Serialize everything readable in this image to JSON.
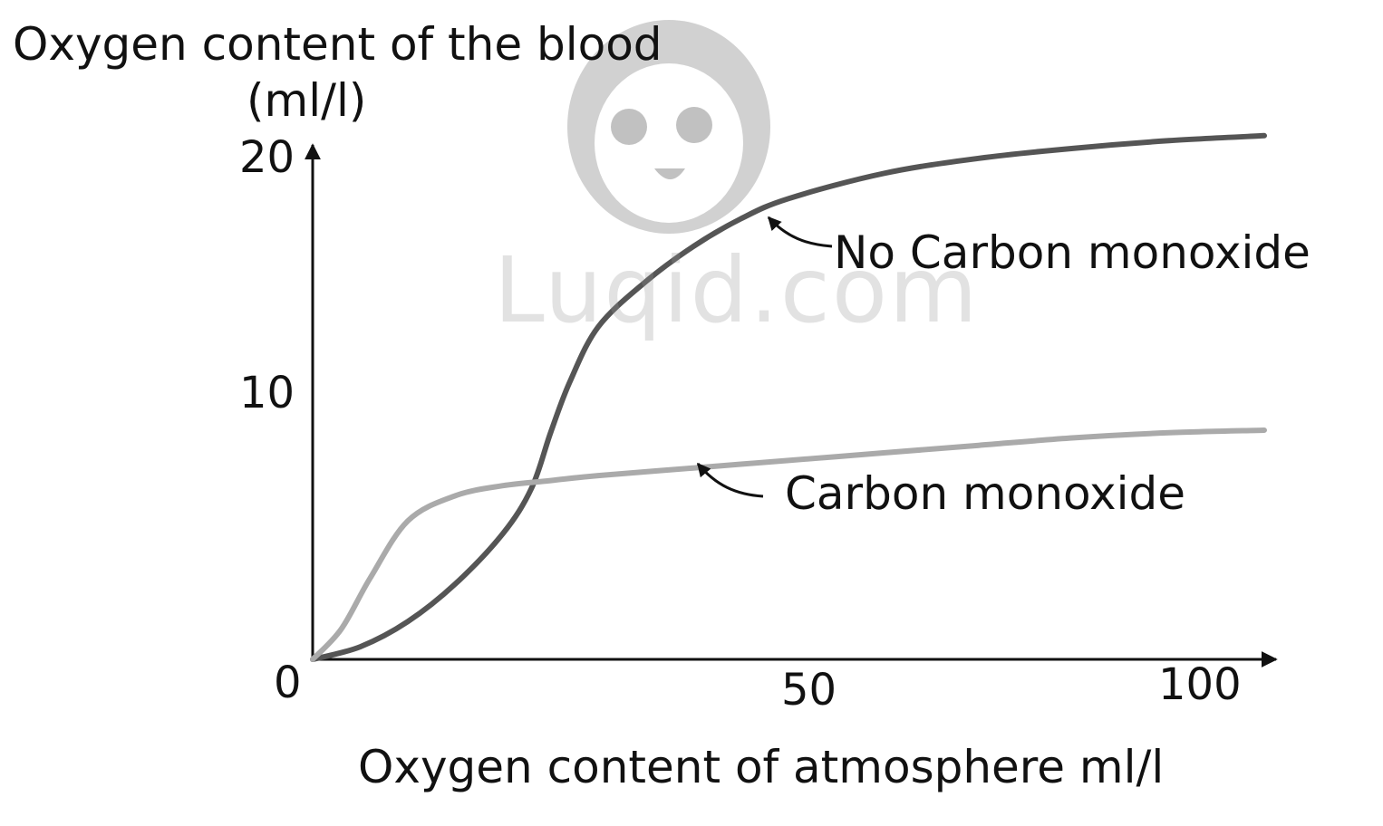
{
  "chart_data": {
    "type": "line",
    "title": "",
    "ylabel_line1": "Oxygen content of the blood",
    "ylabel_line2": "(ml/l)",
    "xlabel": "Oxygen content of atmosphere ml/l",
    "xlim": [
      0,
      100
    ],
    "ylim": [
      0,
      20
    ],
    "x_ticks": [
      50,
      100
    ],
    "y_ticks": [
      10,
      20
    ],
    "origin_label": "0",
    "grid": false,
    "series": [
      {
        "name": "No Carbon monoxide",
        "color": "#555555",
        "x": [
          0,
          5,
          10,
          15,
          20,
          23,
          25,
          27,
          30,
          35,
          40,
          45,
          50,
          60,
          70,
          80,
          90,
          100
        ],
        "y": [
          0,
          0.5,
          1.5,
          3.0,
          5.0,
          6.8,
          9.0,
          11.0,
          13.2,
          15.0,
          16.4,
          17.5,
          18.3,
          19.3,
          19.9,
          20.3,
          20.6,
          20.8
        ]
      },
      {
        "name": "Carbon monoxide",
        "color": "#aaaaaa",
        "x": [
          0,
          3,
          6,
          10,
          15,
          20,
          25,
          30,
          40,
          50,
          60,
          70,
          80,
          90,
          100
        ],
        "y": [
          0,
          1.2,
          3.2,
          5.5,
          6.5,
          6.9,
          7.1,
          7.3,
          7.6,
          7.9,
          8.2,
          8.5,
          8.8,
          9.0,
          9.1
        ]
      }
    ],
    "annotations": [
      {
        "text": "No Carbon monoxide",
        "series": 0,
        "at_x": 48
      },
      {
        "text": "Carbon monoxide",
        "series": 1,
        "at_x": 41
      }
    ]
  },
  "watermark": "Luqid.com"
}
